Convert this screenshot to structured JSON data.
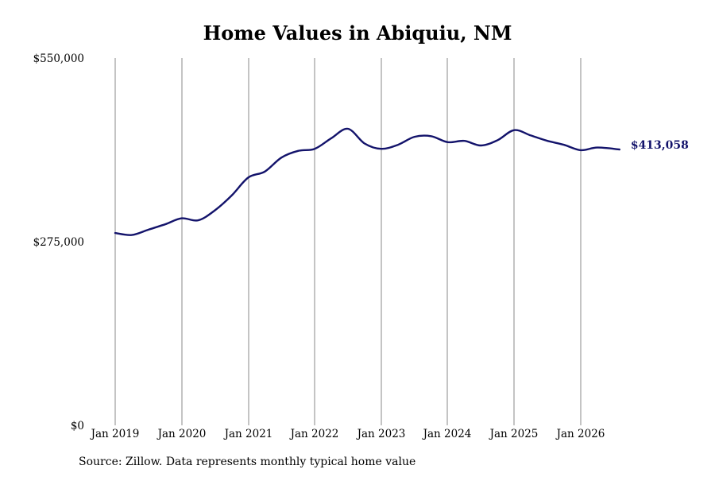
{
  "chart_data": {
    "type": "line",
    "title": "Home Values in Abiquiu, NM",
    "source": "Source: Zillow. Data represents monthly typical home value",
    "xlabel": "",
    "ylabel": "",
    "ylim": [
      0,
      550000
    ],
    "y_ticks": [
      "$0",
      "$275,000",
      "$550,000"
    ],
    "x_ticks": [
      "Jan 2019",
      "Jan 2020",
      "Jan 2021",
      "Jan 2022",
      "Jan 2023",
      "Jan 2024",
      "Jan 2025",
      "Jan 2026"
    ],
    "grid": "vertical",
    "line_color": "#13136b",
    "last_value_label": "$413,058",
    "series": [
      {
        "x": [
          "2019-01",
          "2019-04",
          "2019-07",
          "2019-10",
          "2020-01",
          "2020-04",
          "2020-07",
          "2020-10",
          "2021-01",
          "2021-04",
          "2021-07",
          "2021-10",
          "2022-01",
          "2022-04",
          "2022-07",
          "2022-10",
          "2023-01",
          "2023-04",
          "2023-07",
          "2023-10",
          "2024-01",
          "2024-04",
          "2024-07",
          "2024-10",
          "2025-01",
          "2025-04",
          "2025-07",
          "2025-10",
          "2026-01",
          "2026-04",
          "2026-08"
        ],
        "values": [
          288000,
          285000,
          293000,
          301000,
          310000,
          307000,
          322000,
          344000,
          371000,
          380000,
          401000,
          411000,
          414000,
          430000,
          444000,
          422000,
          414000,
          420000,
          432000,
          433000,
          424000,
          426000,
          419000,
          427000,
          442000,
          434000,
          426000,
          420000,
          412000,
          416000,
          413058
        ]
      }
    ]
  }
}
